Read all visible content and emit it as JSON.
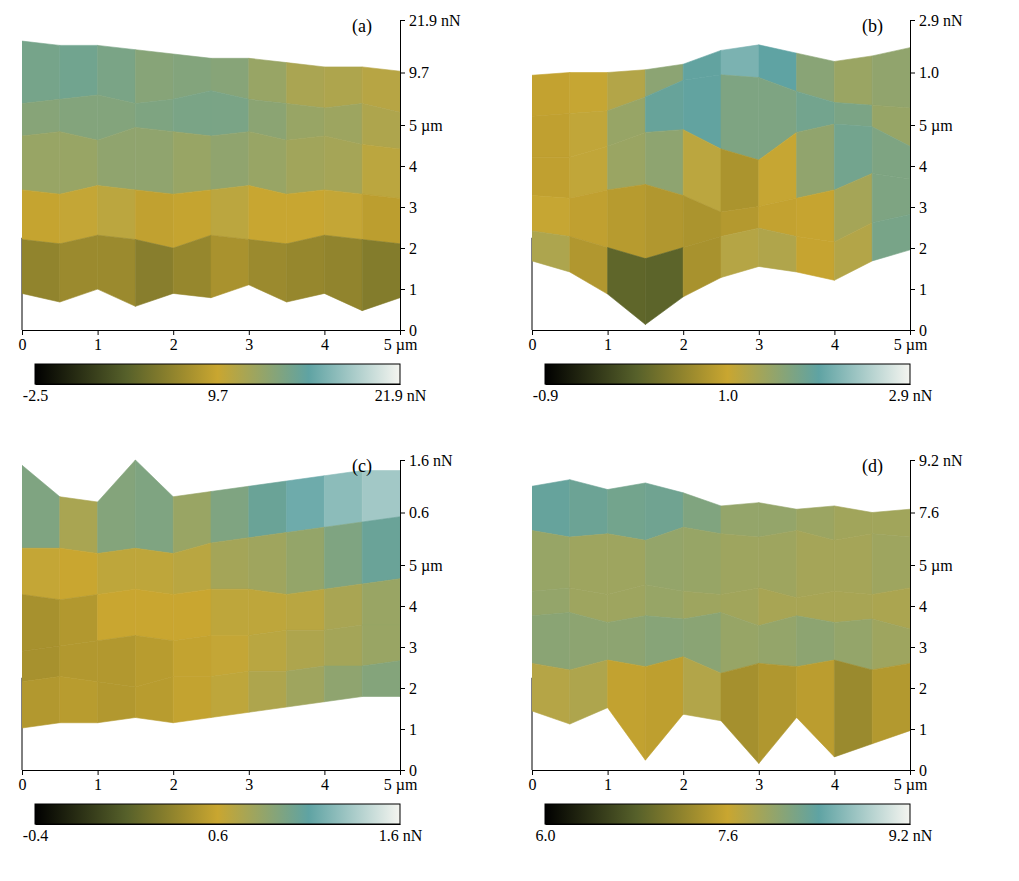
{
  "chart_data": [
    {
      "type": "surface",
      "title": "(a)",
      "x": [
        0,
        0.5,
        1,
        1.5,
        2,
        2.5,
        3,
        3.5,
        4,
        4.5,
        5
      ],
      "y": [
        0,
        1,
        2,
        3,
        4,
        5
      ],
      "z": [
        [
          6,
          4,
          7,
          3,
          6,
          5,
          8,
          4,
          6,
          2,
          5
        ],
        [
          9,
          8,
          10,
          9,
          7,
          10,
          9,
          8,
          10,
          9,
          8
        ],
        [
          11,
          10,
          12,
          11,
          10,
          11,
          12,
          10,
          11,
          10,
          9
        ],
        [
          14,
          15,
          13,
          16,
          15,
          14,
          15,
          13,
          14,
          12,
          11
        ],
        [
          12,
          13,
          14,
          12,
          13,
          15,
          13,
          12,
          11,
          12,
          10
        ],
        [
          17,
          16,
          16,
          15,
          14,
          13,
          13,
          12,
          11,
          11,
          10
        ]
      ],
      "xlim": [
        0,
        5
      ],
      "xticks": [
        0,
        1,
        2,
        3,
        4,
        {
          "value": 5,
          "label": "5 µm"
        }
      ],
      "ylim": [
        0,
        5
      ],
      "yticks": [
        0,
        1,
        2,
        3,
        4,
        {
          "value": 5,
          "label": "5 µm"
        }
      ],
      "zlim": [
        -2.5,
        21.9
      ],
      "zticks": [
        9.7,
        {
          "value": 21.9,
          "label": "21.9 nN"
        }
      ],
      "colorbar": {
        "range": [
          -2.5,
          21.9
        ],
        "ticks": [
          -2.5,
          9.7,
          {
            "value": 21.9,
            "label": "21.9 nN"
          }
        ]
      }
    },
    {
      "type": "surface",
      "title": "(b)",
      "x": [
        0,
        0.5,
        1,
        1.5,
        2,
        2.5,
        3,
        3.5,
        4,
        4.5,
        5
      ],
      "y": [
        0,
        1,
        2,
        3,
        4,
        5
      ],
      "z": [
        [
          1.6,
          1.2,
          0.4,
          -0.7,
          0.3,
          1.0,
          1.4,
          1.2,
          0.9,
          1.6,
          2.0
        ],
        [
          1.2,
          1.0,
          0.6,
          0.2,
          0.6,
          1.0,
          1.3,
          1.0,
          0.8,
          1.5,
          1.8
        ],
        [
          1.0,
          0.9,
          1.2,
          1.4,
          1.0,
          0.4,
          0.6,
          0.9,
          1.2,
          1.8,
          1.6
        ],
        [
          0.9,
          0.9,
          1.3,
          1.8,
          1.9,
          1.2,
          0.8,
          1.8,
          2.1,
          2.0,
          1.3
        ],
        [
          0.9,
          1.0,
          1.1,
          1.6,
          2.2,
          2.4,
          2.3,
          1.8,
          1.4,
          1.3,
          1.2
        ],
        [
          0.9,
          1.0,
          1.0,
          1.1,
          1.3,
          1.8,
          2.0,
          1.7,
          1.4,
          1.6,
          1.9
        ]
      ],
      "xlim": [
        0,
        5
      ],
      "xticks": [
        0,
        1,
        2,
        3,
        4,
        {
          "value": 5,
          "label": "5 µm"
        }
      ],
      "ylim": [
        0,
        5
      ],
      "yticks": [
        0,
        1,
        2,
        3,
        4,
        {
          "value": 5,
          "label": "5 µm"
        }
      ],
      "zlim": [
        -0.9,
        2.9
      ],
      "zticks": [
        {
          "value": 1,
          "label": "1.0"
        },
        {
          "value": 2.9,
          "label": "2.9 nN"
        }
      ],
      "colorbar": {
        "range": [
          -0.9,
          2.9
        ],
        "ticks": [
          -0.9,
          {
            "value": 1,
            "label": "1.0"
          },
          {
            "value": 2.9,
            "label": "2.9 nN"
          }
        ]
      }
    },
    {
      "type": "surface",
      "title": "(c)",
      "x": [
        0,
        0.5,
        1,
        1.5,
        2,
        2.5,
        3,
        3.5,
        4,
        4.5,
        5
      ],
      "y": [
        0,
        1,
        2,
        3,
        4,
        5
      ],
      "z": [
        [
          0.4,
          0.5,
          0.5,
          0.6,
          0.5,
          0.6,
          0.7,
          0.8,
          0.9,
          1.0,
          1.0
        ],
        [
          0.5,
          0.6,
          0.5,
          0.4,
          0.6,
          0.6,
          0.7,
          0.7,
          0.8,
          0.8,
          0.9
        ],
        [
          0.3,
          0.4,
          0.5,
          0.6,
          0.5,
          0.6,
          0.6,
          0.7,
          0.7,
          0.8,
          0.8
        ],
        [
          0.6,
          0.5,
          0.6,
          0.7,
          0.6,
          0.7,
          0.7,
          0.6,
          0.7,
          0.8,
          0.9
        ],
        [
          0.7,
          0.7,
          0.6,
          0.7,
          0.6,
          0.8,
          0.9,
          1.0,
          1.1,
          1.2,
          1.3
        ],
        [
          1.5,
          0.9,
          0.8,
          1.6,
          0.9,
          1.0,
          1.1,
          1.2,
          1.3,
          1.4,
          1.4
        ]
      ],
      "xlim": [
        0,
        5
      ],
      "xticks": [
        0,
        1,
        2,
        3,
        4,
        {
          "value": 5,
          "label": "5 µm"
        }
      ],
      "ylim": [
        0,
        5
      ],
      "yticks": [
        0,
        1,
        2,
        3,
        4,
        {
          "value": 5,
          "label": "5 µm"
        }
      ],
      "zlim": [
        -0.4,
        1.6
      ],
      "zticks": [
        0.6,
        {
          "value": 1.6,
          "label": "1.6 nN"
        }
      ],
      "colorbar": {
        "range": [
          -0.4,
          1.6
        ],
        "ticks": [
          -0.4,
          0.6,
          {
            "value": 1.6,
            "label": "1.6 nN"
          }
        ]
      }
    },
    {
      "type": "surface",
      "title": "(d)",
      "x": [
        0,
        0.5,
        1,
        1.5,
        2,
        2.5,
        3,
        3.5,
        4,
        4.5,
        5
      ],
      "y": [
        0,
        1,
        2,
        3,
        4,
        5
      ],
      "z": [
        [
          7.8,
          7.4,
          7.9,
          6.3,
          7.7,
          7.5,
          6.2,
          7.6,
          6.4,
          6.8,
          7.2
        ],
        [
          8.0,
          7.8,
          8.1,
          7.9,
          8.2,
          7.7,
          8.0,
          7.9,
          8.1,
          7.8,
          8.0
        ],
        [
          8.2,
          8.3,
          8.0,
          8.2,
          8.1,
          8.3,
          7.9,
          8.2,
          8.0,
          8.1,
          7.8
        ],
        [
          7.7,
          7.8,
          7.6,
          7.9,
          7.7,
          7.6,
          7.8,
          7.5,
          7.7,
          7.6,
          7.8
        ],
        [
          8.3,
          8.1,
          8.2,
          8.0,
          8.4,
          8.2,
          8.1,
          8.3,
          8.0,
          8.2,
          8.1
        ],
        [
          8.4,
          8.6,
          8.3,
          8.5,
          8.2,
          7.8,
          7.9,
          7.7,
          7.8,
          7.6,
          7.7
        ]
      ],
      "xlim": [
        0,
        5
      ],
      "xticks": [
        0,
        1,
        2,
        3,
        4,
        {
          "value": 5,
          "label": "5 µm"
        }
      ],
      "ylim": [
        0,
        5
      ],
      "yticks": [
        0,
        1,
        2,
        3,
        4,
        {
          "value": 5,
          "label": "5 µm"
        }
      ],
      "zlim": [
        6,
        9.2
      ],
      "zticks": [
        7.6,
        {
          "value": 9.2,
          "label": "9.2 nN"
        }
      ],
      "colorbar": {
        "range": [
          6,
          9.2
        ],
        "ticks": [
          {
            "value": 6,
            "label": "6.0"
          },
          7.6,
          {
            "value": 9.2,
            "label": "9.2 nN"
          }
        ]
      }
    }
  ]
}
